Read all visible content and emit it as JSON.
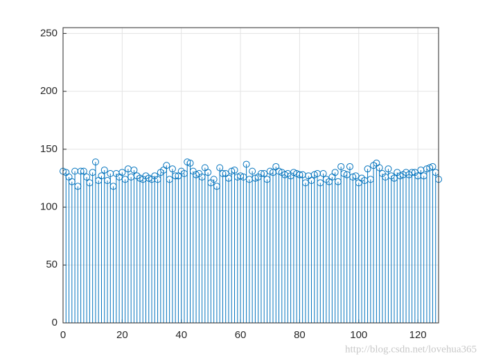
{
  "chart_data": {
    "type": "stem",
    "color": "#0072bd",
    "x": [
      0,
      1,
      2,
      3,
      4,
      5,
      6,
      7,
      8,
      9,
      10,
      11,
      12,
      13,
      14,
      15,
      16,
      17,
      18,
      19,
      20,
      21,
      22,
      23,
      24,
      25,
      26,
      27,
      28,
      29,
      30,
      31,
      32,
      33,
      34,
      35,
      36,
      37,
      38,
      39,
      40,
      41,
      42,
      43,
      44,
      45,
      46,
      47,
      48,
      49,
      50,
      51,
      52,
      53,
      54,
      55,
      56,
      57,
      58,
      59,
      60,
      61,
      62,
      63,
      64,
      65,
      66,
      67,
      68,
      69,
      70,
      71,
      72,
      73,
      74,
      75,
      76,
      77,
      78,
      79,
      80,
      81,
      82,
      83,
      84,
      85,
      86,
      87,
      88,
      89,
      90,
      91,
      92,
      93,
      94,
      95,
      96,
      97,
      98,
      99,
      100,
      101,
      102,
      103,
      104,
      105,
      106,
      107,
      108,
      109,
      110,
      111,
      112,
      113,
      114,
      115,
      116,
      117,
      118,
      119,
      120,
      121,
      122,
      123,
      124,
      125,
      126,
      127
    ],
    "values": [
      131,
      130,
      126,
      122,
      131,
      118,
      131,
      131,
      126,
      121,
      130,
      139,
      123,
      127,
      132,
      123,
      129,
      118,
      129,
      126,
      130,
      124,
      133,
      126,
      132,
      127,
      125,
      124,
      127,
      125,
      124,
      127,
      124,
      130,
      132,
      136,
      124,
      133,
      127,
      127,
      131,
      129,
      139,
      138,
      131,
      128,
      129,
      126,
      134,
      130,
      121,
      124,
      118,
      134,
      129,
      129,
      125,
      131,
      132,
      126,
      127,
      126,
      137,
      124,
      131,
      125,
      126,
      129,
      129,
      124,
      131,
      130,
      135,
      131,
      130,
      128,
      129,
      127,
      130,
      129,
      128,
      128,
      121,
      127,
      123,
      128,
      129,
      121,
      129,
      124,
      122,
      126,
      130,
      122,
      135,
      129,
      128,
      135,
      126,
      127,
      121,
      125,
      123,
      133,
      124,
      136,
      138,
      134,
      129,
      126,
      133,
      127,
      125,
      130,
      127,
      128,
      130,
      128,
      130,
      130,
      127,
      132,
      127,
      133,
      134,
      135,
      130,
      124
    ],
    "xlim": [
      0,
      127
    ],
    "xticks": [
      0,
      20,
      40,
      60,
      80,
      100,
      120
    ],
    "ylim": [
      0,
      255
    ],
    "yticks": [
      0,
      50,
      100,
      150,
      200,
      250
    ],
    "grid": true,
    "watermark": "http://blog.csdn.net/lovehua365"
  }
}
